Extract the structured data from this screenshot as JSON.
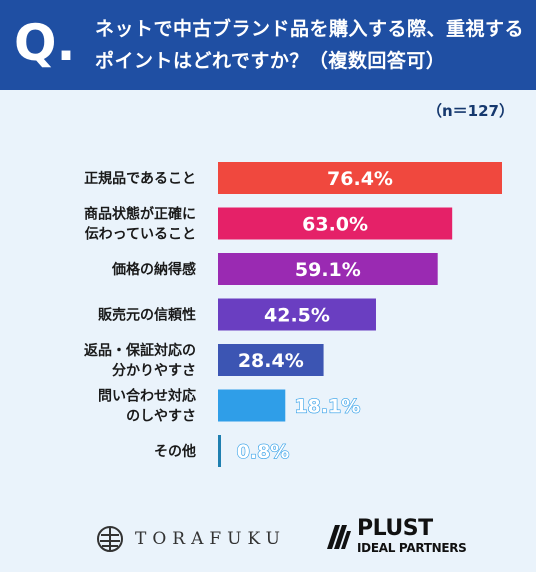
{
  "header": {
    "q_mark": "Q.",
    "question": "ネットで中古ブランド品を購入する際、重視するポイントはどれですか？（複数回答可）"
  },
  "sample_note": "（n＝127）",
  "chart_data": {
    "type": "bar",
    "orientation": "horizontal",
    "title": "ネットで中古ブランド品を購入する際、重視するポイントはどれですか？（複数回答可）",
    "categories": [
      [
        "正規品であること"
      ],
      [
        "商品状態が正確に",
        "伝わっていること"
      ],
      [
        "価格の納得感"
      ],
      [
        "販売元の信頼性"
      ],
      [
        "返品・保証対応の",
        "分かりやすさ"
      ],
      [
        "問い合わせ対応",
        "のしやすさ"
      ],
      [
        "その他"
      ]
    ],
    "values": [
      76.4,
      63.0,
      59.1,
      42.5,
      28.4,
      18.1,
      0.8
    ],
    "value_labels": [
      "76.4%",
      "63.0%",
      "59.1%",
      "42.5%",
      "28.4%",
      "18.1%",
      "0.8%"
    ],
    "unit": "%",
    "xlim": [
      0,
      80
    ],
    "colors": [
      "#f0483e",
      "#e52168",
      "#9a2ab2",
      "#6a3ec1",
      "#3c55b3",
      "#2f9ee8",
      "#1f7fb0"
    ],
    "label_colors": [
      "#ffffff",
      "#ffffff",
      "#ffffff",
      "#ffffff",
      "#ffffff",
      "#2f9ee8",
      "#2f9ee8"
    ],
    "grid": false,
    "legend": "none"
  },
  "logos": {
    "torafuku": "TORAFUKU",
    "plust_name": "PLUST",
    "plust_sub": "IDEAL PARTNERS"
  },
  "colors": {
    "header_bg": "#1f4fa3",
    "page_bg": "#eaf3fb",
    "label_text": "#1a1a1a"
  }
}
